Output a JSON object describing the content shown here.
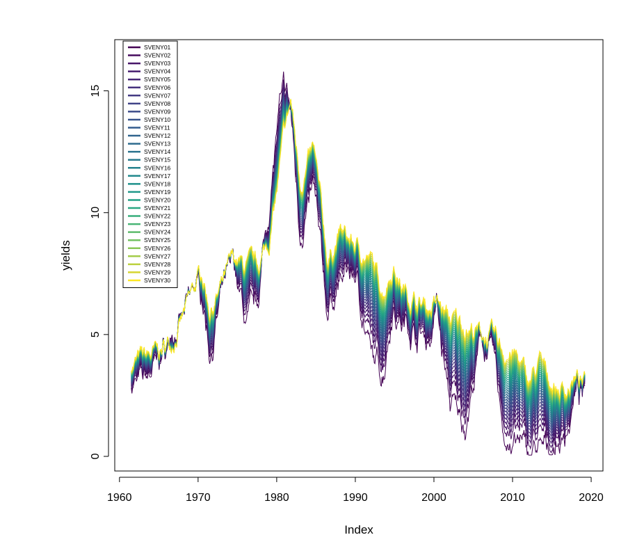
{
  "chart_data": {
    "type": "line",
    "title": "",
    "xlabel": "Index",
    "ylabel": "yields",
    "xlim": [
      1959.4,
      2021.5
    ],
    "ylim": [
      -0.6,
      17.1
    ],
    "x_ticks": [
      1960,
      1970,
      1980,
      1990,
      2000,
      2010,
      2020
    ],
    "x_tick_labels": [
      "1960",
      "1970",
      "1980",
      "1990",
      "2000",
      "2010",
      "2020"
    ],
    "y_ticks": [
      0,
      5,
      10,
      15
    ],
    "y_tick_labels": [
      "0",
      "5",
      "10",
      "15"
    ],
    "grid": false,
    "legend_position": "top-left",
    "short_maturity_color": "#440154",
    "long_maturity_color": "#FDE725",
    "colors": [
      "#440154",
      "#460B5E",
      "#471568",
      "#481F70",
      "#472877",
      "#46317E",
      "#433A83",
      "#404387",
      "#3C4C8A",
      "#38548C",
      "#345C8D",
      "#30648E",
      "#2D6B8E",
      "#2A738E",
      "#277A8E",
      "#24828E",
      "#21898D",
      "#1F918B",
      "#1F9889",
      "#22A086",
      "#2AA782",
      "#37AE7C",
      "#49B575",
      "#5DBB6C",
      "#73C262",
      "#8AC757",
      "#A3CC4A",
      "#BCD03D",
      "#D6D531",
      "#FDE725"
    ],
    "series": [
      {
        "name": "SVENY01"
      },
      {
        "name": "SVENY02"
      },
      {
        "name": "SVENY03"
      },
      {
        "name": "SVENY04"
      },
      {
        "name": "SVENY05"
      },
      {
        "name": "SVENY06"
      },
      {
        "name": "SVENY07"
      },
      {
        "name": "SVENY08"
      },
      {
        "name": "SVENY09"
      },
      {
        "name": "SVENY10"
      },
      {
        "name": "SVENY11"
      },
      {
        "name": "SVENY12"
      },
      {
        "name": "SVENY13"
      },
      {
        "name": "SVENY14"
      },
      {
        "name": "SVENY15"
      },
      {
        "name": "SVENY16"
      },
      {
        "name": "SVENY17"
      },
      {
        "name": "SVENY18"
      },
      {
        "name": "SVENY19"
      },
      {
        "name": "SVENY20"
      },
      {
        "name": "SVENY21"
      },
      {
        "name": "SVENY22"
      },
      {
        "name": "SVENY23"
      },
      {
        "name": "SVENY24"
      },
      {
        "name": "SVENY25"
      },
      {
        "name": "SVENY26"
      },
      {
        "name": "SVENY27"
      },
      {
        "name": "SVENY28"
      },
      {
        "name": "SVENY29"
      },
      {
        "name": "SVENY30"
      }
    ],
    "long_end": {
      "x": [
        1961.5,
        1963,
        1965,
        1966.5,
        1968,
        1969.5,
        1970.5,
        1971.5,
        1973,
        1974.5,
        1976,
        1977.5,
        1979,
        1980,
        1981,
        1981.8,
        1983,
        1984.7,
        1986.5,
        1988,
        1990,
        1992,
        1993.5,
        1994.8,
        1996,
        1998,
        1999.5,
        2000.3,
        2002,
        2004,
        2006,
        2007.5,
        2009,
        2010.5,
        2012,
        2013.5,
        2015,
        2016.5,
        2018,
        2019.2
      ],
      "y": [
        3.8,
        4.0,
        4.2,
        4.7,
        5.6,
        6.8,
        7.6,
        6.1,
        6.9,
        8.0,
        7.7,
        7.7,
        8.8,
        10.8,
        13.2,
        14.5,
        11.3,
        12.5,
        8.0,
        9.2,
        8.6,
        8.0,
        6.8,
        7.9,
        6.9,
        6.3,
        6.1,
        6.3,
        5.6,
        5.4,
        5.0,
        4.8,
        4.3,
        4.1,
        3.0,
        3.8,
        3.0,
        2.7,
        3.2,
        2.9
      ]
    },
    "short_end": {
      "x": [
        1961.5,
        1963,
        1965,
        1966.5,
        1968,
        1969.5,
        1970.5,
        1971.5,
        1973,
        1974.5,
        1976,
        1977.5,
        1979,
        1980,
        1981,
        1981.8,
        1983,
        1984.7,
        1986.5,
        1988,
        1990,
        1992,
        1993.5,
        1994.8,
        1996,
        1998,
        1999.5,
        2000.3,
        2002,
        2004,
        2006,
        2007.5,
        2009,
        2010.5,
        2012,
        2013.5,
        2015,
        2016.5,
        2018,
        2019.2
      ],
      "y": [
        2.9,
        3.1,
        3.9,
        4.8,
        5.5,
        7.0,
        6.8,
        4.3,
        6.4,
        8.1,
        5.5,
        6.3,
        10.2,
        13.4,
        15.0,
        14.0,
        9.2,
        11.0,
        5.8,
        7.3,
        7.6,
        3.9,
        3.4,
        6.4,
        5.4,
        5.1,
        4.8,
        6.3,
        2.2,
        1.2,
        4.6,
        4.4,
        0.6,
        0.4,
        0.2,
        0.2,
        0.2,
        0.7,
        2.4,
        2.3
      ]
    }
  }
}
